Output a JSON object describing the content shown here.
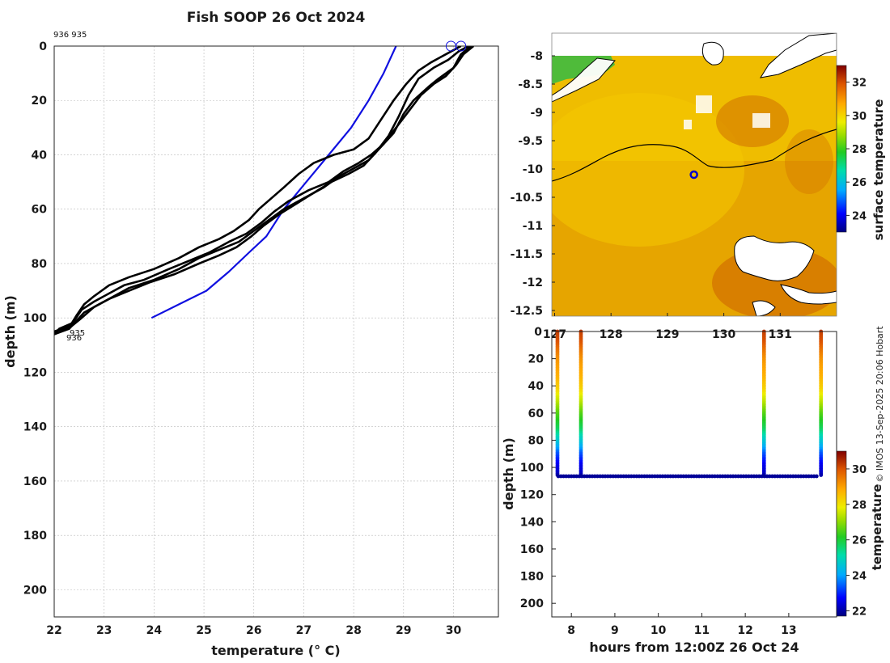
{
  "page": {
    "title": "Fish SOOP 26 Oct 2024",
    "credit": "© IMOS 13-Sep-2025 20:06 Hobart"
  },
  "chart_data": [
    {
      "id": "profile",
      "type": "line",
      "title": "Fish SOOP 26 Oct 2024",
      "xlabel": "temperature (° C)",
      "ylabel": "depth (m)",
      "xlim": [
        22,
        30.9
      ],
      "ylim": [
        210,
        0
      ],
      "xticks": [
        22,
        23,
        24,
        25,
        26,
        27,
        28,
        29,
        30
      ],
      "yticks": [
        0,
        20,
        40,
        60,
        80,
        100,
        120,
        140,
        160,
        180,
        200
      ],
      "grid": true,
      "header_labels": "936 935",
      "profile_labels": [
        "935",
        "936"
      ],
      "series": [
        {
          "name": "climatology",
          "color": "#1010e0",
          "points": [
            [
              28.85,
              0
            ],
            [
              28.6,
              10
            ],
            [
              28.3,
              20
            ],
            [
              27.95,
              30
            ],
            [
              27.5,
              40
            ],
            [
              27.05,
              50
            ],
            [
              26.6,
              60
            ],
            [
              26.25,
              70
            ],
            [
              25.9,
              76
            ],
            [
              25.5,
              83
            ],
            [
              25.05,
              90
            ],
            [
              24.5,
              95
            ],
            [
              23.95,
              100
            ]
          ]
        },
        {
          "name": "cast-1",
          "color": "#000000",
          "points": [
            [
              30.35,
              0
            ],
            [
              30.15,
              3
            ],
            [
              30.0,
              8
            ],
            [
              29.7,
              12
            ],
            [
              29.5,
              15
            ],
            [
              29.2,
              20
            ],
            [
              29.0,
              25
            ],
            [
              28.8,
              32
            ],
            [
              28.5,
              38
            ],
            [
              28.3,
              42
            ],
            [
              28.0,
              45
            ],
            [
              27.7,
              48
            ],
            [
              27.4,
              52
            ],
            [
              27.0,
              56
            ],
            [
              26.6,
              60
            ],
            [
              26.3,
              64
            ],
            [
              26.0,
              68
            ],
            [
              25.7,
              72
            ],
            [
              25.3,
              75
            ],
            [
              24.9,
              78
            ],
            [
              24.5,
              82
            ],
            [
              24.0,
              86
            ],
            [
              23.5,
              89
            ],
            [
              23.2,
              92
            ],
            [
              22.9,
              95
            ],
            [
              22.6,
              98
            ],
            [
              22.4,
              102
            ],
            [
              22.3,
              104
            ],
            [
              22.0,
              106
            ]
          ]
        },
        {
          "name": "cast-2",
          "color": "#000000",
          "points": [
            [
              30.4,
              0
            ],
            [
              30.2,
              3
            ],
            [
              30.05,
              7
            ],
            [
              29.85,
              11
            ],
            [
              29.6,
              14
            ],
            [
              29.35,
              18
            ],
            [
              29.1,
              24
            ],
            [
              28.85,
              30
            ],
            [
              28.6,
              36
            ],
            [
              28.35,
              40
            ],
            [
              28.1,
              43
            ],
            [
              27.8,
              46
            ],
            [
              27.5,
              50
            ],
            [
              27.1,
              53
            ],
            [
              26.7,
              57
            ],
            [
              26.4,
              61
            ],
            [
              26.15,
              65
            ],
            [
              25.85,
              69
            ],
            [
              25.5,
              72
            ],
            [
              25.1,
              76
            ],
            [
              24.7,
              79
            ],
            [
              24.3,
              82
            ],
            [
              23.8,
              86
            ],
            [
              23.4,
              88
            ],
            [
              23.1,
              91
            ],
            [
              22.8,
              94
            ],
            [
              22.55,
              97
            ],
            [
              22.4,
              101
            ],
            [
              22.3,
              103
            ],
            [
              22.0,
              105
            ]
          ]
        },
        {
          "name": "cast-3",
          "color": "#000000",
          "points": [
            [
              30.15,
              0
            ],
            [
              29.95,
              2
            ],
            [
              29.75,
              4
            ],
            [
              29.55,
              6
            ],
            [
              29.3,
              9
            ],
            [
              29.05,
              14
            ],
            [
              28.8,
              20
            ],
            [
              28.55,
              27
            ],
            [
              28.3,
              34
            ],
            [
              28.0,
              38
            ],
            [
              27.6,
              40
            ],
            [
              27.2,
              43
            ],
            [
              26.9,
              47
            ],
            [
              26.6,
              52
            ],
            [
              26.35,
              56
            ],
            [
              26.1,
              60
            ],
            [
              25.9,
              64
            ],
            [
              25.6,
              68
            ],
            [
              25.3,
              71
            ],
            [
              24.9,
              74
            ],
            [
              24.5,
              78
            ],
            [
              24.0,
              82
            ],
            [
              23.5,
              85
            ],
            [
              23.1,
              88
            ],
            [
              22.8,
              92
            ],
            [
              22.6,
              95
            ],
            [
              22.45,
              99
            ],
            [
              22.35,
              102
            ],
            [
              22.1,
              104
            ],
            [
              21.95,
              107
            ]
          ]
        },
        {
          "name": "cast-4",
          "color": "#000000",
          "points": [
            [
              30.3,
              0
            ],
            [
              30.1,
              2
            ],
            [
              29.9,
              5
            ],
            [
              29.6,
              8
            ],
            [
              29.3,
              12
            ],
            [
              29.1,
              18
            ],
            [
              28.9,
              26
            ],
            [
              28.7,
              33
            ],
            [
              28.45,
              39
            ],
            [
              28.2,
              44
            ],
            [
              27.9,
              47
            ],
            [
              27.55,
              50
            ],
            [
              27.2,
              54
            ],
            [
              26.85,
              58
            ],
            [
              26.5,
              62
            ],
            [
              26.2,
              66
            ],
            [
              25.95,
              70
            ],
            [
              25.65,
              74
            ],
            [
              25.3,
              77
            ],
            [
              24.9,
              80
            ],
            [
              24.4,
              84
            ],
            [
              23.9,
              87
            ],
            [
              23.5,
              90
            ],
            [
              23.1,
              93
            ],
            [
              22.8,
              96
            ],
            [
              22.55,
              100
            ],
            [
              22.35,
              103
            ],
            [
              22.0,
              106
            ]
          ]
        }
      ],
      "markers": [
        {
          "t": 29.95,
          "d": 0
        },
        {
          "t": 30.15,
          "d": 0
        }
      ]
    },
    {
      "id": "sst-map",
      "type": "heatmap",
      "title": "surface temperature",
      "xticks": [
        127,
        128,
        129,
        130,
        131
      ],
      "xtick_labels": [
        "127",
        "128",
        "129",
        "130",
        "131"
      ],
      "yticks": [
        -8,
        -8.5,
        -9,
        -9.5,
        -10,
        -10.5,
        -11,
        -11.5,
        -12,
        -12.5
      ],
      "ytick_labels": [
        "-8",
        "-8.5",
        "-9",
        "-9.5",
        "-10",
        "-10.5",
        "-11",
        "-11.5",
        "-12",
        "-12.5"
      ],
      "lon_range": [
        126.95,
        132.0
      ],
      "lat_range": [
        -12.6,
        -7.6
      ],
      "colorbar_ticks": [
        24,
        26,
        28,
        30,
        32
      ],
      "colorbar_range": [
        23,
        33
      ],
      "location": {
        "lon": 129.47,
        "lat": -10.1
      }
    },
    {
      "id": "timeseries",
      "type": "scatter",
      "xlabel": "hours from 12:00Z 26 Oct 24",
      "ylabel": "depth (m)",
      "title": "temperature",
      "xlim": [
        7.55,
        14.1
      ],
      "ylim": [
        210,
        0
      ],
      "xticks": [
        8,
        9,
        10,
        11,
        12,
        13
      ],
      "yticks": [
        20,
        40,
        60,
        80,
        100,
        120,
        140,
        160,
        180,
        200
      ],
      "top_tick_label": "0",
      "colorbar_ticks": [
        22,
        24,
        26,
        28,
        30
      ],
      "colorbar_range": [
        21.7,
        31
      ],
      "casts": [
        8.22,
        12.43,
        13.74
      ],
      "first_cast_hour": 7.68,
      "bottom_depth": 106,
      "bottom_hours": [
        7.7,
        13.7
      ]
    }
  ],
  "colors": {
    "climatology": "#1010e0",
    "profiles": "#000000",
    "land": "#ffffff",
    "marker": "#1010e0"
  }
}
